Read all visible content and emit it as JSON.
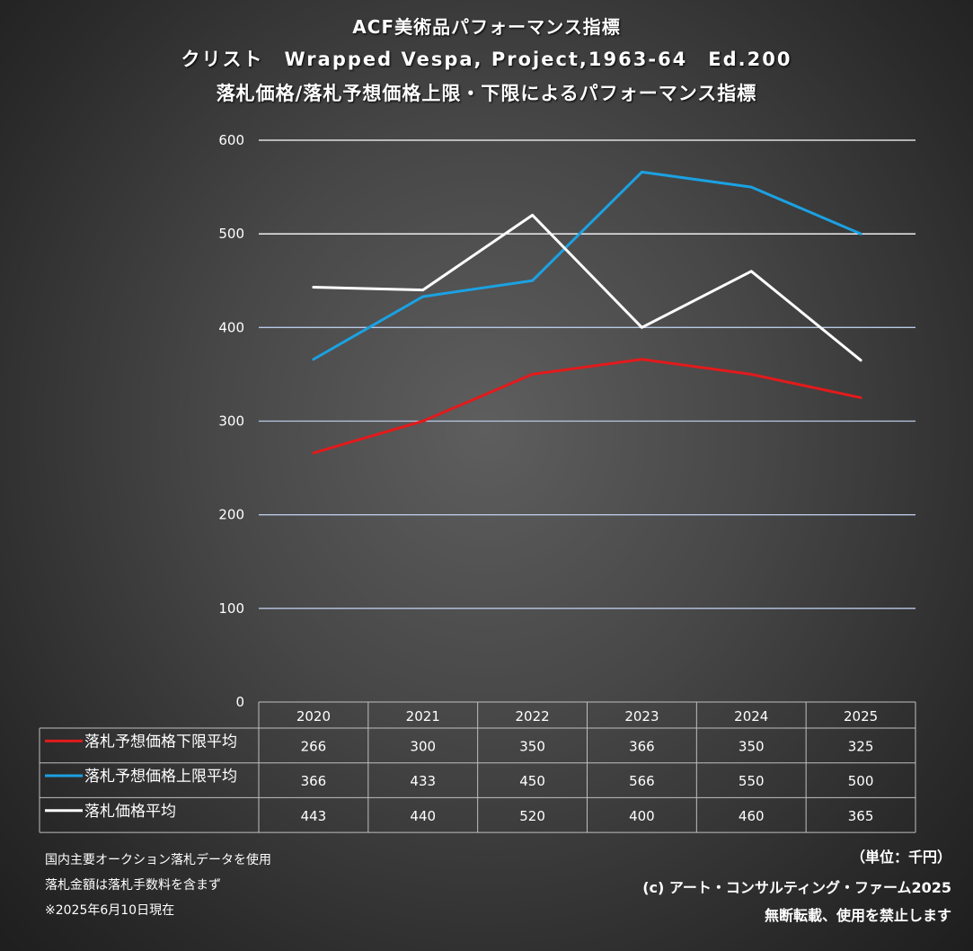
{
  "title": {
    "line1": "ACF美術品パフォーマンス指標",
    "line2": "クリスト　Wrapped Vespa, Project,1963-64　Ed.200",
    "line3": "落札価格/落札予想価格上限・下限によるパフォーマンス指標"
  },
  "chart_data": {
    "type": "line",
    "categories": [
      "2020",
      "2021",
      "2022",
      "2023",
      "2024",
      "2025"
    ],
    "ylim": [
      0,
      600
    ],
    "yticks": [
      "0",
      "100",
      "200",
      "300",
      "400",
      "500",
      "600"
    ],
    "grid": true,
    "legend_placement": "data-table-left",
    "series": [
      {
        "name": "落札予想価格下限平均",
        "color": "#e31a1c",
        "values": [
          266,
          300,
          350,
          366,
          350,
          325
        ]
      },
      {
        "name": "落札予想価格上限平均",
        "color": "#1ba1e2",
        "values": [
          366,
          433,
          450,
          566,
          550,
          500
        ]
      },
      {
        "name": "落札価格平均",
        "color": "#ffffff",
        "values": [
          443,
          440,
          520,
          400,
          460,
          365
        ]
      }
    ]
  },
  "footer": {
    "note1": "国内主要オークション落札データを使用",
    "note2": "落札金額は落札手数料を含まず",
    "note3": "※2025年6月10日現在",
    "unit": "（単位：千円）",
    "copyright": "(c) アート・コンサルティング・ファーム2025",
    "rights": "無断転載、使用を禁止します"
  }
}
